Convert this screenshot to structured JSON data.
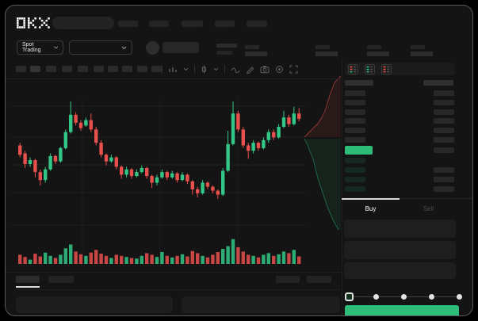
{
  "header": {
    "logo": "OKX",
    "logo_pixels": [
      "XXXX.X..X.X...X",
      "X..X.X.X...X.X.",
      "X..X.XX.....X..",
      "X..X.X.X...X.X.",
      "XXXX.X..X.X...X"
    ],
    "nav_placeholder_count": 5
  },
  "subheader": {
    "market_selector_label": "Spot Trading",
    "stats_placeholder_count": 4
  },
  "toolbar": {
    "chip_count": 10,
    "icons": [
      "timeframe-icon",
      "chevron-down-icon",
      "chart-style-icon",
      "chevron-down-icon",
      "line-tool-icon",
      "draw-icon",
      "camera-icon",
      "settings-icon",
      "fullscreen-icon"
    ]
  },
  "orderbook": {
    "layout_icons": [
      "book-combined-icon",
      "book-bids-icon",
      "book-asks-icon"
    ],
    "ask_row_count": 6,
    "bid_row_count": 4,
    "bid_amount_row_count": 3
  },
  "trade_panel": {
    "tabs": [
      {
        "label": "Buy",
        "active": true
      },
      {
        "label": "Sell",
        "active": false
      }
    ],
    "input_row_count": 3,
    "slider": {
      "stop_count": 5,
      "active_stop": 0
    }
  },
  "bottom_bar": {
    "left_tab_count": 2,
    "right_tab_count": 2,
    "panel_count": 2
  },
  "colors": {
    "accent_green": "#2ebd79",
    "up_green": "#33c787",
    "down_red": "#e8504d",
    "bid_tint": "rgba(46,189,121,0.12)",
    "placeholder_gray": "#282828"
  },
  "chart_data": {
    "type": "candlestick",
    "title": "",
    "xlabel": "",
    "ylabel": "",
    "ylim": [
      0,
      100
    ],
    "grid": true,
    "legend": false,
    "up_color": "#33c787",
    "down_color": "#e8504d",
    "candles": [
      [
        64,
        57,
        66,
        55
      ],
      [
        58,
        50,
        60,
        47
      ],
      [
        50,
        53,
        55,
        48
      ],
      [
        53,
        44,
        54,
        40
      ],
      [
        44,
        38,
        46,
        34
      ],
      [
        38,
        46,
        48,
        36
      ],
      [
        46,
        56,
        58,
        45
      ],
      [
        56,
        52,
        57,
        50
      ],
      [
        52,
        62,
        63,
        51
      ],
      [
        62,
        74,
        76,
        61
      ],
      [
        74,
        87,
        97,
        73
      ],
      [
        87,
        81,
        89,
        79
      ],
      [
        81,
        77,
        83,
        75
      ],
      [
        79,
        83,
        85,
        78
      ],
      [
        83,
        76,
        88,
        74
      ],
      [
        76,
        66,
        78,
        64
      ],
      [
        66,
        57,
        68,
        55
      ],
      [
        57,
        52,
        58,
        49
      ],
      [
        52,
        55,
        57,
        51
      ],
      [
        55,
        48,
        56,
        46
      ],
      [
        48,
        42,
        49,
        39
      ],
      [
        42,
        46,
        48,
        40
      ],
      [
        46,
        41,
        47,
        39
      ],
      [
        41,
        44,
        46,
        40
      ],
      [
        44,
        47,
        49,
        43
      ],
      [
        47,
        41,
        48,
        39
      ],
      [
        41,
        36,
        42,
        32
      ],
      [
        36,
        40,
        42,
        34
      ],
      [
        40,
        44,
        46,
        39
      ],
      [
        44,
        40,
        45,
        38
      ],
      [
        40,
        43,
        45,
        39
      ],
      [
        43,
        38,
        44,
        36
      ],
      [
        38,
        42,
        44,
        37
      ],
      [
        42,
        37,
        43,
        35
      ],
      [
        37,
        31,
        38,
        27
      ],
      [
        31,
        28,
        33,
        25
      ],
      [
        28,
        36,
        38,
        27
      ],
      [
        36,
        33,
        37,
        31
      ],
      [
        33,
        30,
        34,
        28
      ],
      [
        30,
        27,
        31,
        24
      ],
      [
        27,
        45,
        47,
        26
      ],
      [
        45,
        65,
        75,
        44
      ],
      [
        65,
        88,
        97,
        64
      ],
      [
        88,
        76,
        90,
        74
      ],
      [
        76,
        64,
        78,
        62
      ],
      [
        64,
        60,
        66,
        54
      ],
      [
        60,
        66,
        68,
        58
      ],
      [
        66,
        62,
        67,
        60
      ],
      [
        62,
        68,
        70,
        61
      ],
      [
        68,
        74,
        76,
        66
      ],
      [
        74,
        70,
        76,
        68
      ],
      [
        70,
        78,
        80,
        69
      ],
      [
        78,
        85,
        90,
        77
      ],
      [
        85,
        80,
        87,
        78
      ],
      [
        80,
        88,
        93,
        79
      ],
      [
        88,
        84,
        92,
        82
      ]
    ],
    "volume": [
      34,
      26,
      16,
      38,
      28,
      42,
      30,
      22,
      34,
      58,
      72,
      46,
      36,
      30,
      42,
      52,
      38,
      30,
      22,
      34,
      30,
      26,
      22,
      20,
      30,
      40,
      34,
      26,
      44,
      30,
      24,
      30,
      36,
      28,
      48,
      40,
      30,
      24,
      34,
      44,
      56,
      66,
      92,
      62,
      46,
      34,
      30,
      24,
      34,
      40,
      30,
      36,
      46,
      40,
      52,
      28
    ],
    "depth": {
      "asks_boundary": [
        [
          46,
          0
        ],
        [
          38,
          8
        ],
        [
          35,
          16
        ],
        [
          32,
          24
        ],
        [
          29,
          34
        ],
        [
          26,
          44
        ],
        [
          22,
          52
        ],
        [
          17,
          60
        ],
        [
          11,
          66
        ],
        [
          5,
          72
        ],
        [
          0,
          77
        ]
      ],
      "bids_boundary": [
        [
          0,
          79
        ],
        [
          4,
          87
        ],
        [
          7,
          95
        ],
        [
          11,
          105
        ],
        [
          14,
          117
        ],
        [
          17,
          129
        ],
        [
          21,
          141
        ],
        [
          25,
          153
        ],
        [
          29,
          165
        ],
        [
          34,
          177
        ],
        [
          39,
          187
        ],
        [
          43,
          194
        ]
      ]
    }
  }
}
